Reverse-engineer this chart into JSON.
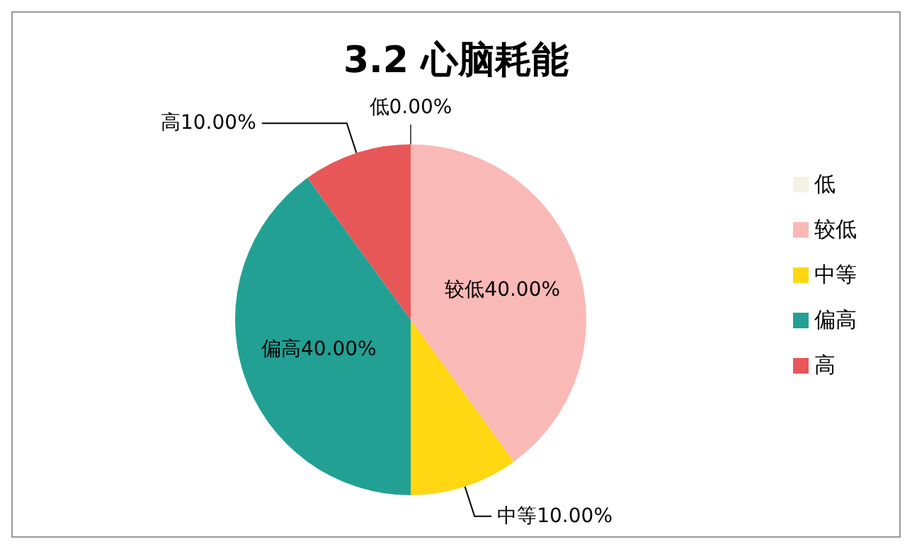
{
  "chart_data": {
    "type": "pie",
    "title": "3.2 心脑耗能",
    "categories": [
      "低",
      "较低",
      "中等",
      "偏高",
      "高"
    ],
    "values": [
      0,
      40,
      10,
      40,
      10
    ],
    "value_labels": [
      "0.00%",
      "40.00%",
      "10.00%",
      "40.00%",
      "10.00%"
    ],
    "colors": [
      "#f5f1e3",
      "#f9b9b7",
      "#ffd712",
      "#22a094",
      "#e85757"
    ],
    "legend": "right"
  }
}
